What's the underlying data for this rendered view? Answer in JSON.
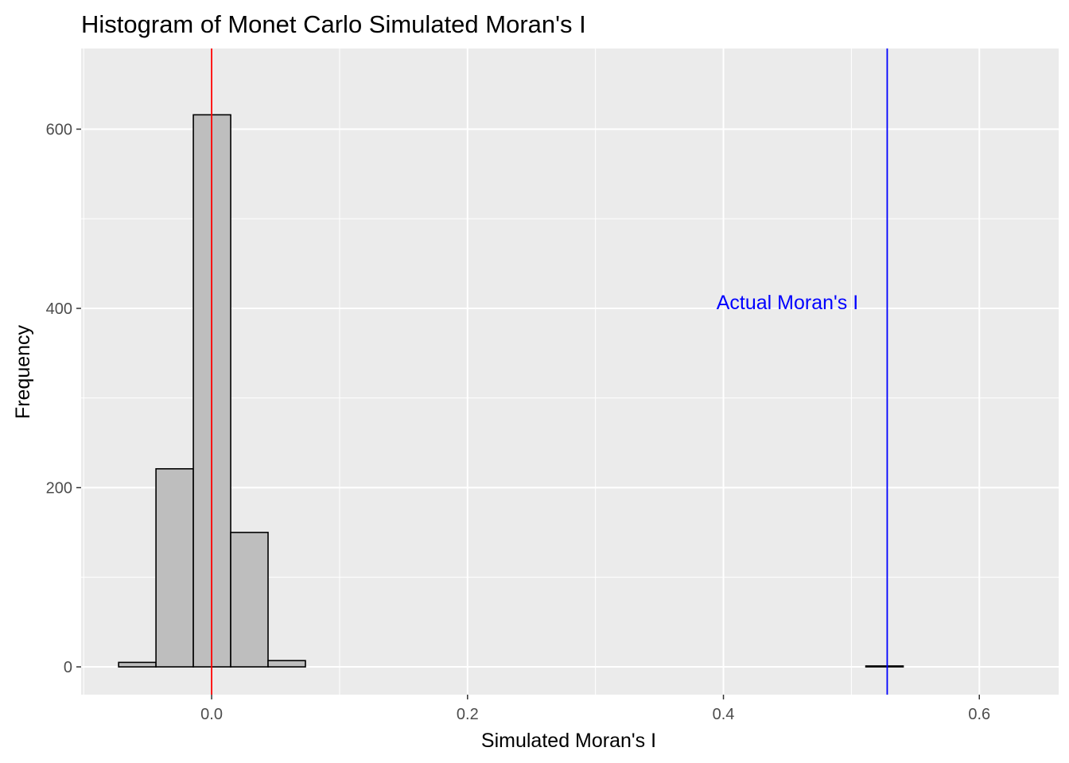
{
  "chart_data": {
    "type": "histogram",
    "title": "Histogram of Monet Carlo Simulated Moran's I",
    "xlabel": "Simulated Moran's I",
    "ylabel": "Frequency",
    "xlim": [
      -0.102,
      0.662
    ],
    "ylim": [
      -31,
      690
    ],
    "x_ticks": [
      0.0,
      0.2,
      0.4,
      0.6
    ],
    "x_tick_labels": [
      "0.0",
      "0.2",
      "0.4",
      "0.6"
    ],
    "y_ticks": [
      0,
      200,
      400,
      600
    ],
    "y_tick_labels": [
      "0",
      "200",
      "400",
      "600"
    ],
    "bin_width": 0.0292,
    "bins": [
      {
        "x0": -0.0727,
        "x1": -0.0435,
        "count": 5
      },
      {
        "x0": -0.0435,
        "x1": -0.0143,
        "count": 221
      },
      {
        "x0": -0.0143,
        "x1": 0.0149,
        "count": 616
      },
      {
        "x0": 0.0149,
        "x1": 0.0441,
        "count": 150
      },
      {
        "x0": 0.0441,
        "x1": 0.0733,
        "count": 7
      },
      {
        "x0": 0.0733,
        "x1": 0.1025,
        "count": 0
      },
      {
        "x0": 0.1025,
        "x1": 0.1317,
        "count": 0
      },
      {
        "x0": 0.1317,
        "x1": 0.1609,
        "count": 0
      },
      {
        "x0": 0.1609,
        "x1": 0.1901,
        "count": 0
      },
      {
        "x0": 0.1901,
        "x1": 0.2193,
        "count": 0
      },
      {
        "x0": 0.2193,
        "x1": 0.2485,
        "count": 0
      },
      {
        "x0": 0.2485,
        "x1": 0.2777,
        "count": 0
      },
      {
        "x0": 0.2777,
        "x1": 0.3069,
        "count": 0
      },
      {
        "x0": 0.3069,
        "x1": 0.3361,
        "count": 0
      },
      {
        "x0": 0.3361,
        "x1": 0.3653,
        "count": 0
      },
      {
        "x0": 0.3653,
        "x1": 0.3945,
        "count": 0
      },
      {
        "x0": 0.3945,
        "x1": 0.4237,
        "count": 0
      },
      {
        "x0": 0.4237,
        "x1": 0.4529,
        "count": 0
      },
      {
        "x0": 0.4529,
        "x1": 0.4821,
        "count": 0
      },
      {
        "x0": 0.4821,
        "x1": 0.5113,
        "count": 0
      },
      {
        "x0": 0.5113,
        "x1": 0.5405,
        "count": 1
      },
      {
        "x0": 0.5405,
        "x1": 0.5697,
        "count": 0
      },
      {
        "x0": 0.5697,
        "x1": 0.5989,
        "count": 0
      }
    ],
    "reference_lines": [
      {
        "name": "mean-line",
        "x": 0.0,
        "color": "#ff0000"
      },
      {
        "name": "actual-line",
        "x": 0.528,
        "color": "#0000ff"
      }
    ],
    "annotation": {
      "text": "Actual Moran's I",
      "x": 0.45,
      "y": 407,
      "color": "#0000ff"
    },
    "grid": true,
    "colors": {
      "panel_background": "#ebebeb",
      "grid_major": "#ffffff",
      "bar_fill": "#bebebe",
      "bar_outline": "#000000",
      "tick": "#333333",
      "tick_label": "#4d4d4d"
    }
  }
}
